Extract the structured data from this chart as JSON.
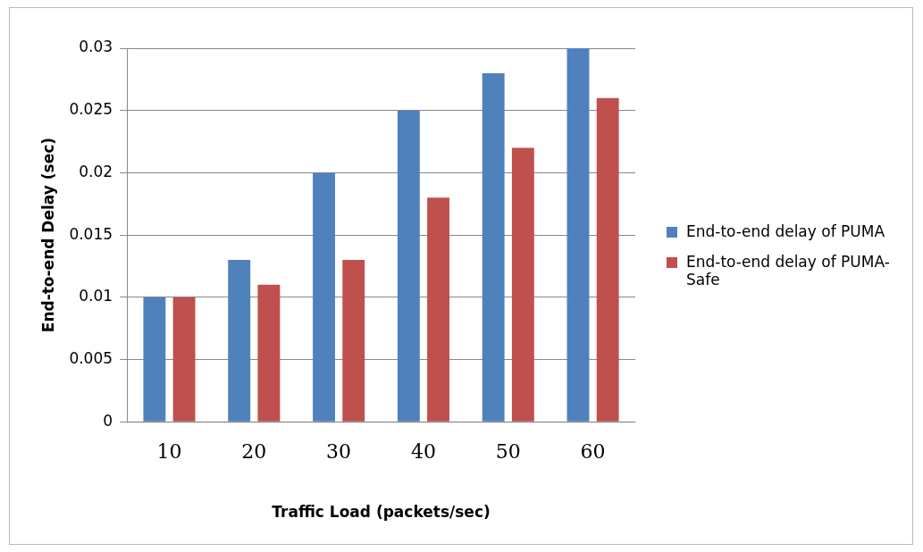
{
  "chart_data": {
    "type": "bar",
    "xlabel": "Traffic Load (packets/sec)",
    "ylabel": "End-to-end Delay (sec)",
    "categories": [
      "10",
      "20",
      "30",
      "40",
      "50",
      "60"
    ],
    "series": [
      {
        "name": "End-to-end delay of PUMA",
        "color": "#4f81bd",
        "values": [
          0.01,
          0.013,
          0.02,
          0.025,
          0.028,
          0.03
        ]
      },
      {
        "name": "End-to-end delay of PUMA-Safe",
        "color": "#c0504d",
        "values": [
          0.01,
          0.011,
          0.013,
          0.018,
          0.022,
          0.026
        ]
      }
    ],
    "ylim": [
      0,
      0.03
    ],
    "yticks": [
      0,
      0.005,
      0.01,
      0.015,
      0.02,
      0.025,
      0.03
    ],
    "grid": "y",
    "legend": "right"
  }
}
